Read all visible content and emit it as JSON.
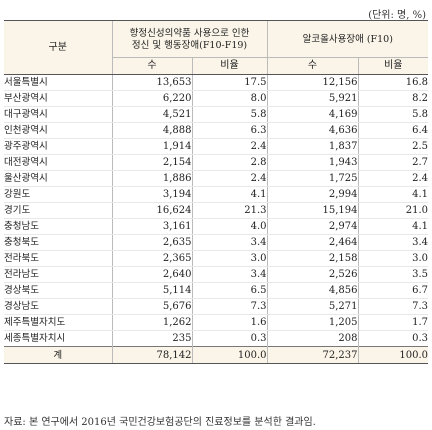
{
  "unit": "(단위: 명, %)",
  "headers": {
    "region": "구분",
    "group1": "향정신성의약품 사용으로 인한 정신 및 행동장애(F10-F19)",
    "group2": "알코올사용장애 (F10)",
    "count": "수",
    "ratio": "비율"
  },
  "rows": [
    {
      "region": "서울특별시",
      "g1_count": "13,653",
      "g1_ratio": "17.5",
      "g2_count": "12,156",
      "g2_ratio": "16.8"
    },
    {
      "region": "부산광역시",
      "g1_count": "6,220",
      "g1_ratio": "8.0",
      "g2_count": "5,921",
      "g2_ratio": "8.2"
    },
    {
      "region": "대구광역시",
      "g1_count": "4,521",
      "g1_ratio": "5.8",
      "g2_count": "4,169",
      "g2_ratio": "5.8"
    },
    {
      "region": "인천광역시",
      "g1_count": "4,888",
      "g1_ratio": "6.3",
      "g2_count": "4,636",
      "g2_ratio": "6.4"
    },
    {
      "region": "광주광역시",
      "g1_count": "1,914",
      "g1_ratio": "2.4",
      "g2_count": "1,837",
      "g2_ratio": "2.5"
    },
    {
      "region": "대전광역시",
      "g1_count": "2,154",
      "g1_ratio": "2.8",
      "g2_count": "1,943",
      "g2_ratio": "2.7"
    },
    {
      "region": "울산광역시",
      "g1_count": "1,886",
      "g1_ratio": "2.4",
      "g2_count": "1,725",
      "g2_ratio": "2.4"
    },
    {
      "region": "강원도",
      "g1_count": "3,194",
      "g1_ratio": "4.1",
      "g2_count": "2,994",
      "g2_ratio": "4.1"
    },
    {
      "region": "경기도",
      "g1_count": "16,624",
      "g1_ratio": "21.3",
      "g2_count": "15,194",
      "g2_ratio": "21.0"
    },
    {
      "region": "충청남도",
      "g1_count": "3,161",
      "g1_ratio": "4.0",
      "g2_count": "2,974",
      "g2_ratio": "4.1"
    },
    {
      "region": "충청북도",
      "g1_count": "2,635",
      "g1_ratio": "3.4",
      "g2_count": "2,464",
      "g2_ratio": "3.4"
    },
    {
      "region": "전라북도",
      "g1_count": "2,365",
      "g1_ratio": "3.0",
      "g2_count": "2,158",
      "g2_ratio": "3.0"
    },
    {
      "region": "전라남도",
      "g1_count": "2,640",
      "g1_ratio": "3.4",
      "g2_count": "2,526",
      "g2_ratio": "3.5"
    },
    {
      "region": "경상북도",
      "g1_count": "5,114",
      "g1_ratio": "6.5",
      "g2_count": "4,856",
      "g2_ratio": "6.7"
    },
    {
      "region": "경상남도",
      "g1_count": "5,676",
      "g1_ratio": "7.3",
      "g2_count": "5,271",
      "g2_ratio": "7.3"
    },
    {
      "region": "제주특별자치도",
      "g1_count": "1,262",
      "g1_ratio": "1.6",
      "g2_count": "1,205",
      "g2_ratio": "1.7"
    },
    {
      "region": "세종특별자치시",
      "g1_count": "235",
      "g1_ratio": "0.3",
      "g2_count": "208",
      "g2_ratio": "0.3"
    }
  ],
  "total": {
    "region": "계",
    "g1_count": "78,142",
    "g1_ratio": "100.0",
    "g2_count": "72,237",
    "g2_ratio": "100.0"
  },
  "source": "자료: 본 연구에서 2016년 국민건강보험공단의 진료정보를 분석한 결과임."
}
